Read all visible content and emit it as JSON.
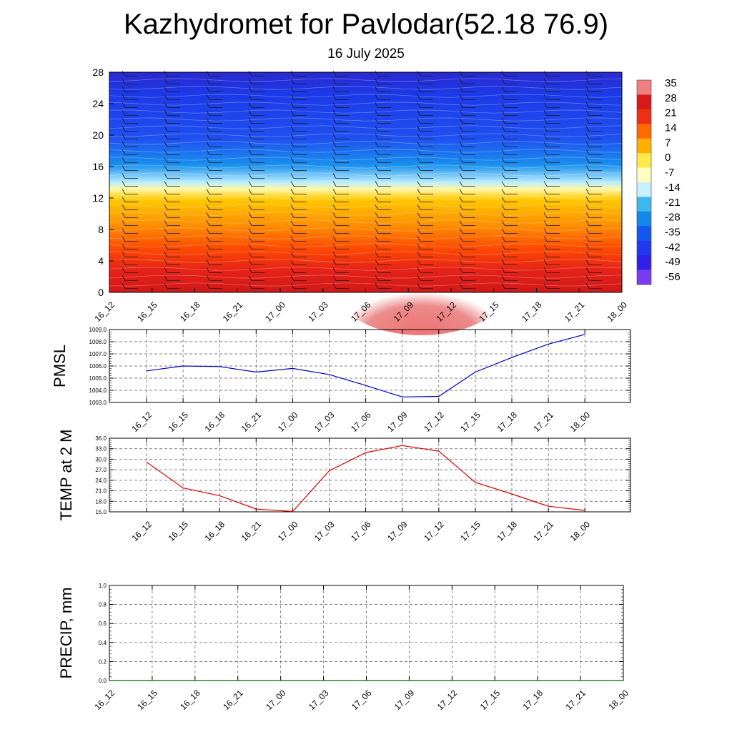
{
  "title": "Kazhydromet for Pavlodar(52.18 76.9)",
  "subtitle": "16 July 2025",
  "chart_data": [
    {
      "type": "heatmap",
      "name": "upper-air-cross-section",
      "x_categories": [
        "16_12",
        "16_15",
        "16_18",
        "16_21",
        "17_00",
        "17_03",
        "17_06",
        "17_09",
        "17_12",
        "17_15",
        "17_18",
        "17_21",
        "18_00"
      ],
      "ylim": [
        0,
        28
      ],
      "yticks": [
        "0",
        "4",
        "8",
        "12",
        "16",
        "20",
        "24",
        "28"
      ],
      "colorbar": {
        "labels": [
          "35",
          "28",
          "21",
          "14",
          "7",
          "0",
          "-7",
          "-14",
          "-21",
          "-28",
          "-35",
          "-42",
          "-49",
          "-56"
        ],
        "colors": [
          "#f08080",
          "#d61a1a",
          "#ee2f14",
          "#ff6a00",
          "#ffb000",
          "#ffe84a",
          "#ffffc0",
          "#c8f0ff",
          "#3fb8f0",
          "#1488e8",
          "#1458f0",
          "#2038f0",
          "#3020e8",
          "#7a3cf0"
        ]
      },
      "grid": false
    },
    {
      "type": "line",
      "name": "pmsl",
      "ylabel": "PMSL",
      "x": [
        "16_12",
        "16_15",
        "16_18",
        "16_21",
        "17_00",
        "17_03",
        "17_06",
        "17_09",
        "17_12",
        "17_15",
        "17_18",
        "17_21",
        "18_00"
      ],
      "series": [
        {
          "values": [
            1005.6,
            1006.0,
            1005.95,
            1005.5,
            1005.8,
            1005.3,
            1004.4,
            1003.45,
            1003.5,
            1005.5,
            1006.7,
            1007.8,
            1008.6
          ],
          "color": "#0000cc"
        }
      ],
      "ylim": [
        1003.0,
        1009.0
      ],
      "yticks": [
        "1003.0",
        "1004.0",
        "1005.0",
        "1006.0",
        "1007.0",
        "1008.0",
        "1009.0"
      ],
      "grid": true
    },
    {
      "type": "line",
      "name": "temp-2m",
      "ylabel": "TEMP at 2 M",
      "x": [
        "16_12",
        "16_15",
        "16_18",
        "16_21",
        "17_00",
        "17_03",
        "17_06",
        "17_09",
        "17_12",
        "17_15",
        "17_18",
        "17_21",
        "18_00"
      ],
      "series": [
        {
          "values": [
            29.2,
            21.8,
            19.6,
            15.8,
            15.1,
            26.7,
            31.9,
            33.9,
            32.3,
            23.4,
            20.1,
            16.6,
            15.4
          ],
          "color": "#dd0000"
        }
      ],
      "ylim": [
        15.0,
        36.0
      ],
      "yticks": [
        "15.0",
        "18.0",
        "21.0",
        "24.0",
        "27.0",
        "30.0",
        "33.0",
        "36.0"
      ],
      "grid": true
    },
    {
      "type": "line",
      "name": "precip",
      "ylabel": "PRECIP, mm",
      "x": [
        "16_12",
        "16_15",
        "16_18",
        "16_21",
        "17_00",
        "17_03",
        "17_06",
        "17_09",
        "17_12",
        "17_15",
        "17_18",
        "17_21",
        "18_00"
      ],
      "series": [
        {
          "values": [
            0,
            0,
            0,
            0,
            0,
            0,
            0,
            0,
            0,
            0,
            0,
            0,
            0
          ],
          "color": "#006400"
        }
      ],
      "ylim": [
        0.0,
        1.0
      ],
      "yticks": [
        "0.0",
        "0.2",
        "0.4",
        "0.6",
        "0.8",
        "1.0"
      ],
      "grid": true
    }
  ]
}
